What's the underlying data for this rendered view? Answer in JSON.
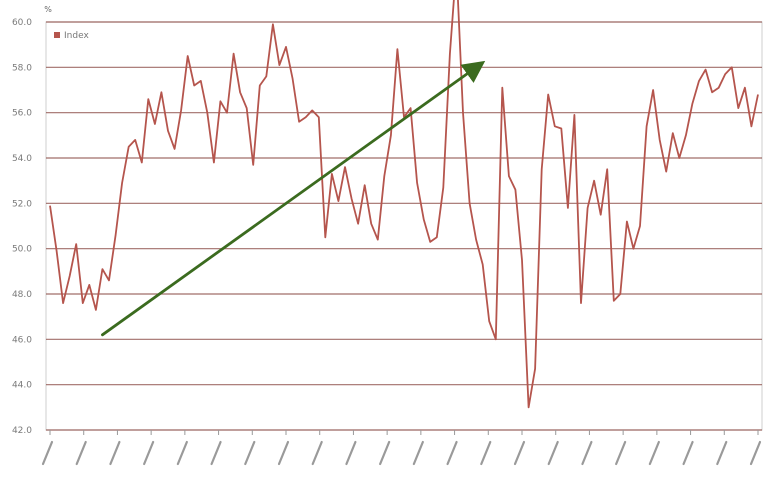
{
  "chart_data": {
    "type": "line",
    "title": "",
    "xlabel": "",
    "ylabel": "",
    "ylabel_tick": "%",
    "y_ticks": [
      "60.0",
      "58.0",
      "56.0",
      "54.0",
      "52.0",
      "50.0",
      "48.0",
      "46.0",
      "44.0",
      "42.0"
    ],
    "x_tick_count": 22,
    "ylim": [
      42,
      60
    ],
    "grid": true,
    "legend_position": "top-left",
    "series": [
      {
        "name": "Index",
        "color": "#b5554d",
        "values": [
          51.9,
          49.9,
          47.6,
          48.8,
          50.2,
          47.6,
          48.4,
          47.3,
          49.1,
          48.6,
          50.6,
          52.9,
          54.5,
          54.8,
          53.8,
          56.6,
          55.5,
          56.9,
          55.2,
          54.4,
          56.1,
          58.5,
          57.2,
          57.4,
          56.0,
          53.8,
          56.5,
          56.0,
          58.6,
          56.9,
          56.2,
          53.7,
          57.2,
          57.6,
          59.9,
          58.1,
          58.9,
          57.5,
          55.6,
          55.8,
          56.1,
          55.8,
          50.5,
          53.3,
          52.1,
          53.6,
          52.2,
          51.1,
          52.8,
          51.1,
          50.4,
          53.2,
          55.0,
          58.8,
          55.8,
          56.2,
          52.9,
          51.3,
          50.3,
          50.5,
          52.7,
          58.6,
          62.7,
          56.0,
          52.0,
          50.4,
          49.3,
          46.8,
          46.0,
          57.1,
          53.2,
          52.6,
          49.5,
          43.0,
          44.7,
          53.5,
          56.8,
          55.4,
          55.3,
          51.8,
          55.9,
          47.6,
          51.8,
          53.0,
          51.5,
          53.5,
          47.7,
          48.0,
          51.2,
          50.0,
          51.0,
          55.4,
          57.0,
          54.8,
          53.4,
          55.1,
          54.0,
          55.0,
          56.4,
          57.4,
          57.9,
          56.9,
          57.1,
          57.7,
          58.0,
          56.2,
          57.1,
          55.4,
          56.8
        ]
      }
    ],
    "trendlines": [
      {
        "color": "#3b6b1f",
        "arrow": true,
        "start": [
          8,
          46.2
        ],
        "end": [
          65,
          58.0
        ]
      },
      {
        "color": "#3b6b1f",
        "arrow": false,
        "start": [
          145,
          43.5
        ],
        "end": [
          215,
          58.5
        ]
      }
    ]
  }
}
